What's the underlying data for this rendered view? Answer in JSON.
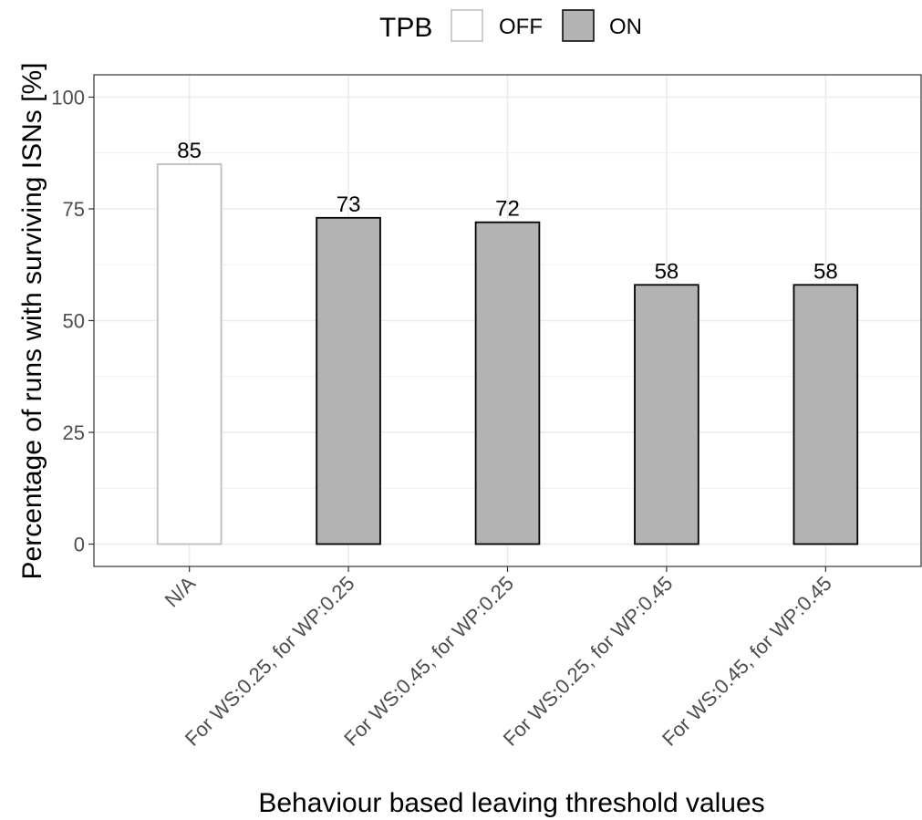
{
  "legend": {
    "title": "TPB",
    "placement": "top",
    "items": [
      {
        "label": "OFF",
        "fill": "#ffffff",
        "stroke": "#bebebe"
      },
      {
        "label": "ON",
        "fill": "#b3b3b3",
        "stroke": "#000000"
      }
    ]
  },
  "chart_data": {
    "type": "bar",
    "categories": [
      "N/A",
      "For WS:0.25, for WP:0.25",
      "For WS:0.45, for WP:0.25",
      "For WS:0.25, for WP:0.45",
      "For WS:0.45, for WP:0.45"
    ],
    "values": [
      85,
      73,
      72,
      58,
      58
    ],
    "data_labels": [
      "85",
      "73",
      "72",
      "58",
      "58"
    ],
    "group": [
      "OFF",
      "ON",
      "ON",
      "ON",
      "ON"
    ],
    "xlabel": "Behaviour based leaving threshold values",
    "ylabel": "Percentage of runs with surviving ISNs [%]",
    "ylim": [
      -5,
      105
    ],
    "yticks": [
      0,
      25,
      50,
      75,
      100
    ],
    "ytick_labels": [
      "0",
      "25",
      "50",
      "75",
      "100"
    ],
    "grid": true,
    "colors": {
      "OFF_fill": "#ffffff",
      "OFF_stroke": "#bebebe",
      "ON_fill": "#b3b3b3",
      "ON_stroke": "#000000",
      "grid": "#ebebeb",
      "panel_border": "#333333"
    }
  }
}
